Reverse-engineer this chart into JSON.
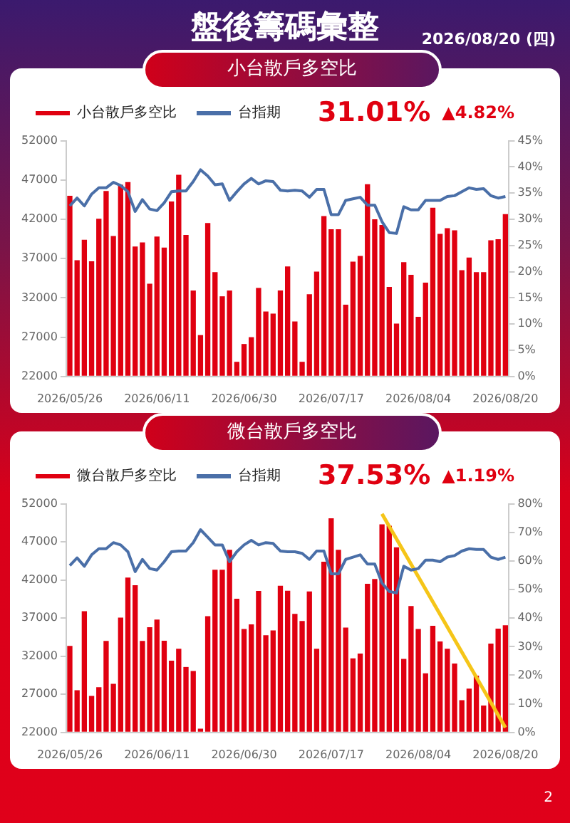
{
  "chart_data": [
    {
      "type": "bar",
      "title": "盤後籌碼彙整",
      "subtitle": "小台散戶多空比",
      "categories": [
        "2026/05/26",
        null,
        null,
        null,
        null,
        null,
        null,
        null,
        null,
        null,
        null,
        null,
        "2026/06/11",
        null,
        null,
        null,
        null,
        null,
        null,
        null,
        null,
        null,
        null,
        null,
        "2026/06/30",
        null,
        null,
        null,
        null,
        null,
        null,
        null,
        null,
        null,
        null,
        null,
        "2026/07/17",
        null,
        null,
        null,
        null,
        null,
        null,
        null,
        null,
        null,
        null,
        null,
        "2026/08/04",
        null,
        null,
        null,
        null,
        null,
        null,
        null,
        null,
        null,
        null,
        null,
        "2026/08/20"
      ],
      "series": [
        {
          "name": "小台散戶多空比",
          "axis": "y2",
          "color": "#e00010",
          "values": [
            34.5,
            22.2,
            26.1,
            22.0,
            30.1,
            35.4,
            26.8,
            36.6,
            37.1,
            24.8,
            25.6,
            17.7,
            26.7,
            24.6,
            33.4,
            38.5,
            27.0,
            16.4,
            7.9,
            29.3,
            19.9,
            15.3,
            16.4,
            2.8,
            6.2,
            7.5,
            16.9,
            12.4,
            12.0,
            16.4,
            21.0,
            10.5,
            2.8,
            15.7,
            20.0,
            30.6,
            28.1,
            28.1,
            13.7,
            21.9,
            23.0,
            36.7,
            30.0,
            28.9,
            17.1,
            10.1,
            21.8,
            19.4,
            11.4,
            17.9,
            32.2,
            27.2,
            28.3,
            27.9,
            20.3,
            22.7,
            19.9,
            19.9,
            26.0,
            26.2,
            31.0
          ]
        },
        {
          "name": "台指期",
          "type": "line",
          "axis": "y",
          "color": "#4a6fa8",
          "values": [
            43700,
            44700,
            43700,
            45200,
            46000,
            46000,
            46700,
            46300,
            45500,
            43000,
            44500,
            43300,
            43100,
            44100,
            45500,
            45600,
            45600,
            46800,
            48300,
            47500,
            46400,
            46500,
            44400,
            45500,
            46500,
            47200,
            46500,
            46900,
            46800,
            45700,
            45600,
            45700,
            45600,
            44800,
            45800,
            45800,
            42600,
            42600,
            44400,
            44600,
            44800,
            43800,
            43800,
            41700,
            40300,
            40200,
            43600,
            43200,
            43200,
            44400,
            44400,
            44400,
            44900,
            45000,
            45500,
            46000,
            45800,
            45900,
            45000,
            44700,
            44900
          ]
        }
      ],
      "ylim": [
        22000,
        52000
      ],
      "yticks": [
        22000,
        27000,
        32000,
        37000,
        42000,
        47000,
        52000
      ],
      "y2lim": [
        0,
        45
      ],
      "y2ticks": [
        {
          "value": 0,
          "label": "0%"
        },
        {
          "value": 5,
          "label": "5%"
        },
        {
          "value": 10,
          "label": "10%"
        },
        {
          "value": 15,
          "label": "15%"
        },
        {
          "value": 20,
          "label": "20%"
        },
        {
          "value": 25,
          "label": "25%"
        },
        {
          "value": 30,
          "label": "30%"
        },
        {
          "value": 35,
          "label": "35%"
        },
        {
          "value": 40,
          "label": "40%"
        },
        {
          "value": 45,
          "label": "45%"
        }
      ],
      "legend": "top",
      "annotations": [
        "31.01%",
        "▲4.82%",
        "2026/08/20 (四)",
        "2"
      ]
    },
    {
      "type": "bar",
      "subtitle": "微台散戶多空比",
      "categories": [
        "2026/05/26",
        null,
        null,
        null,
        null,
        null,
        null,
        null,
        null,
        null,
        null,
        null,
        "2026/06/11",
        null,
        null,
        null,
        null,
        null,
        null,
        null,
        null,
        null,
        null,
        null,
        "2026/06/30",
        null,
        null,
        null,
        null,
        null,
        null,
        null,
        null,
        null,
        null,
        null,
        "2026/07/17",
        null,
        null,
        null,
        null,
        null,
        null,
        null,
        null,
        null,
        null,
        null,
        "2026/08/04",
        null,
        null,
        null,
        null,
        null,
        null,
        null,
        null,
        null,
        null,
        null,
        "2026/08/20"
      ],
      "series": [
        {
          "name": "微台散戶多空比",
          "axis": "y2",
          "color": "#e00010",
          "values": [
            30.3,
            14.8,
            42.4,
            12.8,
            15.8,
            32.0,
            17.0,
            40.2,
            54.2,
            51.5,
            32.0,
            36.8,
            39.5,
            32.1,
            25.1,
            29.3,
            22.9,
            21.5,
            1.3,
            40.7,
            56.9,
            56.9,
            63.9,
            46.8,
            36.2,
            37.8,
            49.5,
            34.0,
            35.7,
            51.3,
            49.6,
            41.5,
            39.0,
            49.3,
            29.3,
            59.7,
            74.9,
            63.9,
            36.7,
            25.9,
            27.6,
            52.0,
            53.7,
            72.8,
            72.3,
            64.8,
            25.7,
            44.2,
            36.2,
            20.7,
            37.3,
            31.8,
            29.3,
            24.1,
            11.3,
            15.3,
            19.9,
            9.4,
            31.1,
            36.3,
            37.5
          ]
        },
        {
          "name": "台指期",
          "type": "line",
          "axis": "y",
          "color": "#4a6fa8",
          "values": [
            43900,
            44900,
            43800,
            45300,
            46100,
            46100,
            46900,
            46600,
            45700,
            43100,
            44700,
            43500,
            43300,
            44400,
            45700,
            45800,
            45800,
            46900,
            48600,
            47600,
            46600,
            46600,
            44400,
            45700,
            46600,
            47200,
            46600,
            46900,
            46800,
            45800,
            45700,
            45700,
            45500,
            44700,
            45800,
            45800,
            42800,
            42800,
            44700,
            45000,
            45300,
            44100,
            44100,
            41600,
            40500,
            40300,
            43800,
            43300,
            43500,
            44600,
            44600,
            44400,
            45000,
            45200,
            45800,
            46100,
            46000,
            46000,
            45000,
            44700,
            45000
          ]
        },
        {
          "type": "line",
          "axis": "y2",
          "color": "#f5c518",
          "values": [
            null,
            null,
            null,
            null,
            null,
            null,
            null,
            null,
            null,
            null,
            null,
            null,
            null,
            null,
            null,
            null,
            null,
            null,
            null,
            null,
            null,
            null,
            null,
            null,
            null,
            null,
            null,
            null,
            null,
            null,
            null,
            null,
            null,
            null,
            null,
            null,
            null,
            null,
            null,
            null,
            null,
            null,
            null,
            76.5,
            null,
            null,
            null,
            null,
            null,
            null,
            null,
            null,
            null,
            null,
            null,
            null,
            null,
            null,
            null,
            null,
            1.7
          ]
        }
      ],
      "ylim": [
        22000,
        52000
      ],
      "yticks": [
        22000,
        27000,
        32000,
        37000,
        42000,
        47000,
        52000
      ],
      "y2lim": [
        0,
        80
      ],
      "y2ticks": [
        {
          "value": 0,
          "label": "0%"
        },
        {
          "value": 10,
          "label": "10%"
        },
        {
          "value": 20,
          "label": "20%"
        },
        {
          "value": 30,
          "label": "30%"
        },
        {
          "value": 40,
          "label": "40%"
        },
        {
          "value": 50,
          "label": "50%"
        },
        {
          "value": 60,
          "label": "60%"
        },
        {
          "value": 70,
          "label": "70%"
        },
        {
          "value": 80,
          "label": "80%"
        }
      ],
      "legend": "top",
      "annotations": [
        "37.53%",
        "▲1.19%"
      ]
    }
  ]
}
